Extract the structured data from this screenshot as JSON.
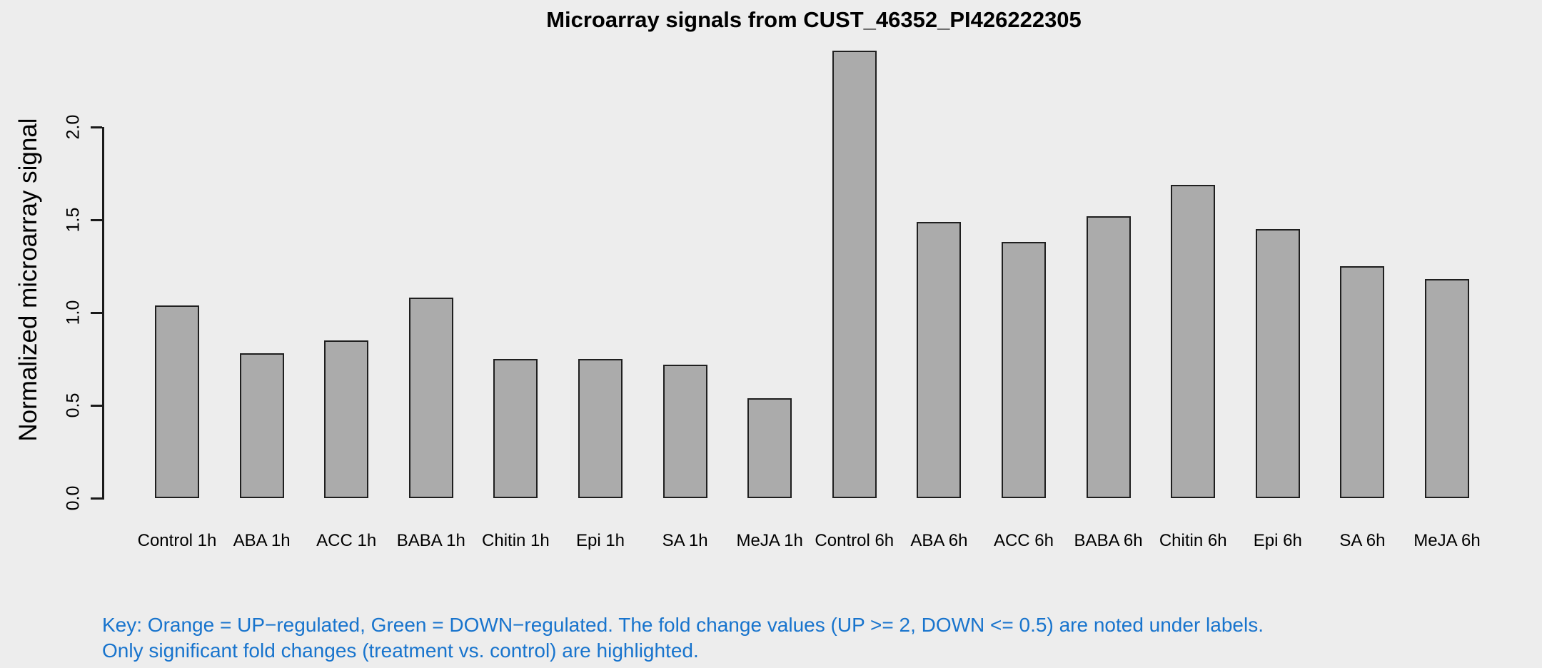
{
  "chart_data": {
    "type": "bar",
    "title": "Microarray signals from CUST_46352_PI426222305",
    "xlabel": "",
    "ylabel": "Normalized microarray signal",
    "categories": [
      "Control 1h",
      "ABA 1h",
      "ACC 1h",
      "BABA 1h",
      "Chitin 1h",
      "Epi 1h",
      "SA 1h",
      "MeJA 1h",
      "Control 6h",
      "ABA 6h",
      "ACC 6h",
      "BABA 6h",
      "Chitin 6h",
      "Epi 6h",
      "SA 6h",
      "MeJA 6h"
    ],
    "values": [
      1.04,
      0.78,
      0.85,
      1.08,
      0.75,
      0.75,
      0.72,
      0.54,
      2.41,
      1.49,
      1.38,
      1.52,
      1.69,
      1.45,
      1.25,
      1.18
    ],
    "ylim": [
      0.0,
      2.0
    ],
    "yticks": [
      0.0,
      0.5,
      1.0,
      1.5,
      2.0
    ],
    "ytick_labels": [
      "0.0",
      "0.5",
      "1.0",
      "1.5",
      "2.0"
    ],
    "grid": false,
    "legend_position": "none",
    "background_color": "#EDEDED",
    "bar_fill_color": "#ABABAB",
    "bar_border_color": "#1F1F1F",
    "axis_color": "#1A1A1A"
  },
  "footer": {
    "key_line1": "Key: Orange = UP−regulated, Green = DOWN−regulated. The fold change values (UP >= 2, DOWN <= 0.5) are noted under labels.",
    "key_line2": "Only significant fold changes (treatment vs. control) are highlighted.",
    "key_color": "#1874CD"
  }
}
